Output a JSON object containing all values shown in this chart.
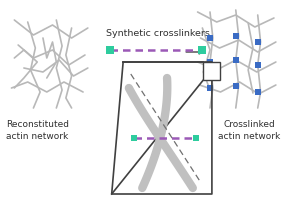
{
  "bg_color": "#ffffff",
  "text_reconstituted": "Reconstituted\nactin network",
  "text_crosslinked": "Crosslinked\nactin network",
  "text_synthetic": "Synthetic crosslinkers",
  "crosslinker_color": "#9b59b6",
  "crosslinker_end_color": "#2ecc9e",
  "actin_color": "#b8b8b8",
  "actin_thick_color": "#c0c0c0",
  "box_line_color": "#404040",
  "node_color": "#3a6bc4",
  "dashed_color": "#707070",
  "text_color": "#303030",
  "arrow_color": "#303030"
}
